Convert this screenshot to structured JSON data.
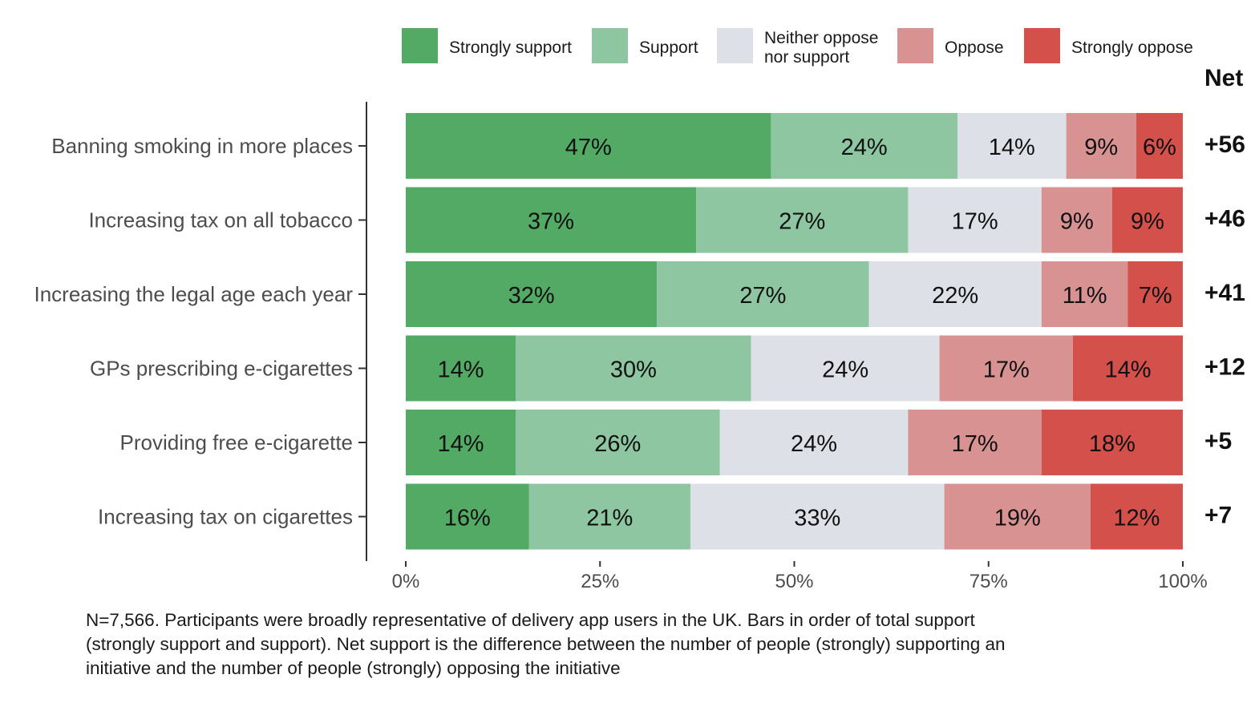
{
  "chart_data": {
    "type": "bar",
    "orientation": "horizontal",
    "stacked": true,
    "categories": [
      "Banning smoking in more places",
      "Increasing tax on all tobacco",
      "Increasing the legal age each year",
      "GPs prescribing e-cigarettes",
      "Providing free e-cigarette",
      "Increasing tax on cigarettes"
    ],
    "series": [
      {
        "name": "Strongly support",
        "color": "#52aa64",
        "values": [
          47,
          37,
          32,
          14,
          14,
          16
        ]
      },
      {
        "name": "Support",
        "color": "#8dc6a1",
        "values": [
          24,
          27,
          27,
          30,
          26,
          21
        ]
      },
      {
        "name": "Neither oppose nor support",
        "color": "#dde1e7",
        "values": [
          14,
          17,
          22,
          24,
          24,
          33
        ]
      },
      {
        "name": "Oppose",
        "color": "#d89292",
        "values": [
          9,
          9,
          11,
          17,
          17,
          19
        ]
      },
      {
        "name": "Strongly oppose",
        "color": "#d3504b",
        "values": [
          6,
          9,
          7,
          14,
          18,
          12
        ]
      }
    ],
    "value_labels": [
      [
        "47%",
        "24%",
        "14%",
        "9%",
        "6%"
      ],
      [
        "37%",
        "27%",
        "17%",
        "9%",
        "9%"
      ],
      [
        "32%",
        "27%",
        "22%",
        "11%",
        "7%"
      ],
      [
        "14%",
        "30%",
        "24%",
        "17%",
        "14%"
      ],
      [
        "14%",
        "26%",
        "24%",
        "17%",
        "18%"
      ],
      [
        "16%",
        "21%",
        "33%",
        "19%",
        "12%"
      ]
    ],
    "legend_labels": [
      [
        "Strongly support"
      ],
      [
        "Support"
      ],
      [
        "Neither oppose",
        "nor support"
      ],
      [
        "Oppose"
      ],
      [
        "Strongly oppose"
      ]
    ],
    "net_header": "Net",
    "net_values": [
      "+56",
      "+46",
      "+41",
      "+12",
      "+5",
      "+7"
    ],
    "x_ticks": [
      0,
      25,
      50,
      75,
      100
    ],
    "x_tick_labels": [
      "0%",
      "25%",
      "50%",
      "75%",
      "100%"
    ],
    "xlim": [
      0,
      100
    ],
    "legend_position": "top",
    "grid": false
  },
  "footnote": "N=7,566. Participants were broadly representative of delivery app users in the UK. Bars in order of total support (strongly support and support). Net support is the difference between the number of people (strongly) supporting an initiative and the number of people (strongly) opposing the initiative"
}
